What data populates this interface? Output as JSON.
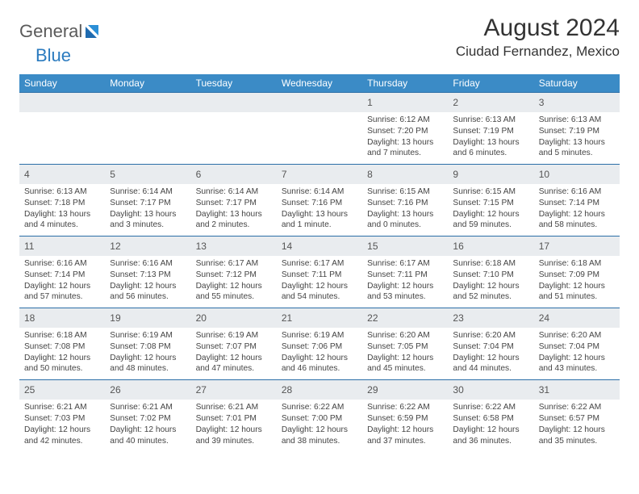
{
  "brand": {
    "part1": "General",
    "part2": "Blue"
  },
  "title": "August 2024",
  "location": "Ciudad Fernandez, Mexico",
  "colors": {
    "header_bg": "#3b8bc6",
    "header_text": "#ffffff",
    "daynum_bg": "#e9ecef",
    "border": "#2b6fa8",
    "brand_gray": "#5a5a5a",
    "brand_blue": "#2b7bbf"
  },
  "weekdays": [
    "Sunday",
    "Monday",
    "Tuesday",
    "Wednesday",
    "Thursday",
    "Friday",
    "Saturday"
  ],
  "weeks": [
    [
      {
        "num": "",
        "lines": []
      },
      {
        "num": "",
        "lines": []
      },
      {
        "num": "",
        "lines": []
      },
      {
        "num": "",
        "lines": []
      },
      {
        "num": "1",
        "lines": [
          "Sunrise: 6:12 AM",
          "Sunset: 7:20 PM",
          "Daylight: 13 hours",
          "and 7 minutes."
        ]
      },
      {
        "num": "2",
        "lines": [
          "Sunrise: 6:13 AM",
          "Sunset: 7:19 PM",
          "Daylight: 13 hours",
          "and 6 minutes."
        ]
      },
      {
        "num": "3",
        "lines": [
          "Sunrise: 6:13 AM",
          "Sunset: 7:19 PM",
          "Daylight: 13 hours",
          "and 5 minutes."
        ]
      }
    ],
    [
      {
        "num": "4",
        "lines": [
          "Sunrise: 6:13 AM",
          "Sunset: 7:18 PM",
          "Daylight: 13 hours",
          "and 4 minutes."
        ]
      },
      {
        "num": "5",
        "lines": [
          "Sunrise: 6:14 AM",
          "Sunset: 7:17 PM",
          "Daylight: 13 hours",
          "and 3 minutes."
        ]
      },
      {
        "num": "6",
        "lines": [
          "Sunrise: 6:14 AM",
          "Sunset: 7:17 PM",
          "Daylight: 13 hours",
          "and 2 minutes."
        ]
      },
      {
        "num": "7",
        "lines": [
          "Sunrise: 6:14 AM",
          "Sunset: 7:16 PM",
          "Daylight: 13 hours",
          "and 1 minute."
        ]
      },
      {
        "num": "8",
        "lines": [
          "Sunrise: 6:15 AM",
          "Sunset: 7:16 PM",
          "Daylight: 13 hours",
          "and 0 minutes."
        ]
      },
      {
        "num": "9",
        "lines": [
          "Sunrise: 6:15 AM",
          "Sunset: 7:15 PM",
          "Daylight: 12 hours",
          "and 59 minutes."
        ]
      },
      {
        "num": "10",
        "lines": [
          "Sunrise: 6:16 AM",
          "Sunset: 7:14 PM",
          "Daylight: 12 hours",
          "and 58 minutes."
        ]
      }
    ],
    [
      {
        "num": "11",
        "lines": [
          "Sunrise: 6:16 AM",
          "Sunset: 7:14 PM",
          "Daylight: 12 hours",
          "and 57 minutes."
        ]
      },
      {
        "num": "12",
        "lines": [
          "Sunrise: 6:16 AM",
          "Sunset: 7:13 PM",
          "Daylight: 12 hours",
          "and 56 minutes."
        ]
      },
      {
        "num": "13",
        "lines": [
          "Sunrise: 6:17 AM",
          "Sunset: 7:12 PM",
          "Daylight: 12 hours",
          "and 55 minutes."
        ]
      },
      {
        "num": "14",
        "lines": [
          "Sunrise: 6:17 AM",
          "Sunset: 7:11 PM",
          "Daylight: 12 hours",
          "and 54 minutes."
        ]
      },
      {
        "num": "15",
        "lines": [
          "Sunrise: 6:17 AM",
          "Sunset: 7:11 PM",
          "Daylight: 12 hours",
          "and 53 minutes."
        ]
      },
      {
        "num": "16",
        "lines": [
          "Sunrise: 6:18 AM",
          "Sunset: 7:10 PM",
          "Daylight: 12 hours",
          "and 52 minutes."
        ]
      },
      {
        "num": "17",
        "lines": [
          "Sunrise: 6:18 AM",
          "Sunset: 7:09 PM",
          "Daylight: 12 hours",
          "and 51 minutes."
        ]
      }
    ],
    [
      {
        "num": "18",
        "lines": [
          "Sunrise: 6:18 AM",
          "Sunset: 7:08 PM",
          "Daylight: 12 hours",
          "and 50 minutes."
        ]
      },
      {
        "num": "19",
        "lines": [
          "Sunrise: 6:19 AM",
          "Sunset: 7:08 PM",
          "Daylight: 12 hours",
          "and 48 minutes."
        ]
      },
      {
        "num": "20",
        "lines": [
          "Sunrise: 6:19 AM",
          "Sunset: 7:07 PM",
          "Daylight: 12 hours",
          "and 47 minutes."
        ]
      },
      {
        "num": "21",
        "lines": [
          "Sunrise: 6:19 AM",
          "Sunset: 7:06 PM",
          "Daylight: 12 hours",
          "and 46 minutes."
        ]
      },
      {
        "num": "22",
        "lines": [
          "Sunrise: 6:20 AM",
          "Sunset: 7:05 PM",
          "Daylight: 12 hours",
          "and 45 minutes."
        ]
      },
      {
        "num": "23",
        "lines": [
          "Sunrise: 6:20 AM",
          "Sunset: 7:04 PM",
          "Daylight: 12 hours",
          "and 44 minutes."
        ]
      },
      {
        "num": "24",
        "lines": [
          "Sunrise: 6:20 AM",
          "Sunset: 7:04 PM",
          "Daylight: 12 hours",
          "and 43 minutes."
        ]
      }
    ],
    [
      {
        "num": "25",
        "lines": [
          "Sunrise: 6:21 AM",
          "Sunset: 7:03 PM",
          "Daylight: 12 hours",
          "and 42 minutes."
        ]
      },
      {
        "num": "26",
        "lines": [
          "Sunrise: 6:21 AM",
          "Sunset: 7:02 PM",
          "Daylight: 12 hours",
          "and 40 minutes."
        ]
      },
      {
        "num": "27",
        "lines": [
          "Sunrise: 6:21 AM",
          "Sunset: 7:01 PM",
          "Daylight: 12 hours",
          "and 39 minutes."
        ]
      },
      {
        "num": "28",
        "lines": [
          "Sunrise: 6:22 AM",
          "Sunset: 7:00 PM",
          "Daylight: 12 hours",
          "and 38 minutes."
        ]
      },
      {
        "num": "29",
        "lines": [
          "Sunrise: 6:22 AM",
          "Sunset: 6:59 PM",
          "Daylight: 12 hours",
          "and 37 minutes."
        ]
      },
      {
        "num": "30",
        "lines": [
          "Sunrise: 6:22 AM",
          "Sunset: 6:58 PM",
          "Daylight: 12 hours",
          "and 36 minutes."
        ]
      },
      {
        "num": "31",
        "lines": [
          "Sunrise: 6:22 AM",
          "Sunset: 6:57 PM",
          "Daylight: 12 hours",
          "and 35 minutes."
        ]
      }
    ]
  ]
}
